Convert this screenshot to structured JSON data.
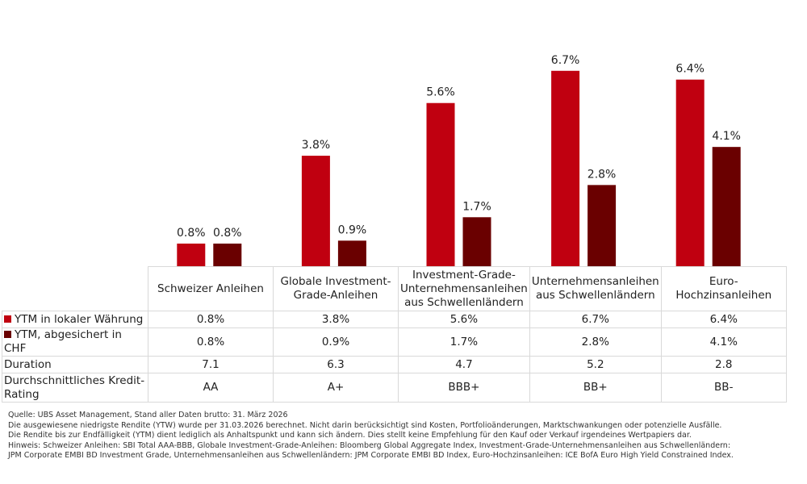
{
  "chart_data": {
    "type": "bar",
    "categories": [
      "Schweizer Anleihen",
      "Globale Investment-Grade-Anleihen",
      "Investment-Grade-Unternehmensanleihen aus Schwellenländern",
      "Unternehmensanleihen aus Schwellenländern",
      "Euro-Hochzinsanleihen"
    ],
    "category_lines": [
      [
        "Schweizer Anleihen"
      ],
      [
        "Globale Investment-",
        "Grade-Anleihen"
      ],
      [
        "Investment-Grade-",
        "Unternehmensanleihen",
        "aus Schwellenländern"
      ],
      [
        "Unternehmensanleihen",
        "aus Schwellenländern"
      ],
      [
        "Euro-Hochzinsanleihen"
      ]
    ],
    "series": [
      {
        "name": "YTM in lokaler Währung",
        "color": "#c00010",
        "values": [
          0.8,
          3.8,
          5.6,
          6.7,
          6.4
        ],
        "labels": [
          "0.8%",
          "3.8%",
          "5.6%",
          "6.7%",
          "6.4%"
        ]
      },
      {
        "name": "YTM, abgesichert in CHF",
        "color": "#6a0000",
        "values": [
          0.8,
          0.9,
          1.7,
          2.8,
          4.1
        ],
        "labels": [
          "0.8%",
          "0.9%",
          "1.7%",
          "2.8%",
          "4.1%"
        ]
      }
    ],
    "ylim": [
      0,
      7
    ]
  },
  "table": {
    "rows": [
      {
        "label": "Duration",
        "values": [
          "7.1",
          "6.3",
          "4.7",
          "5.2",
          "2.8"
        ]
      },
      {
        "label": "Durchschnittliches Kredit-Rating",
        "values": [
          "AA",
          "A+",
          "BBB+",
          "BB+",
          "BB-"
        ]
      }
    ]
  },
  "notes": [
    "Quelle: UBS Asset Management, Stand aller Daten brutto: 31. März 2026",
    "Die ausgewiesene niedrigste Rendite (YTW) wurde per 31.03.2026 berechnet. Nicht darin berücksichtigt sind Kosten, Portfolioänderungen, Marktschwankungen oder potenzielle Ausfälle.",
    "Die Rendite bis zur Endfälligkeit (YTM) dient lediglich als Anhaltspunkt und kann sich ändern. Dies stellt keine Empfehlung für den Kauf oder Verkauf irgendeines Wertpapiers dar.",
    "Hinweis: Schweizer Anleihen: SBI Total AAA-BBB, Globale Investment-Grade-Anleihen: Bloomberg Global Aggregate Index, Investment-Grade-Unternehmensanleihen aus Schwellenländern:",
    "JPM Corporate EMBI BD Investment Grade, Unternehmensanleihen aus Schwellenländern: JPM Corporate EMBI BD Index, Euro-Hochzinsanleihen: ICE BofA Euro High Yield Constrained Index."
  ]
}
